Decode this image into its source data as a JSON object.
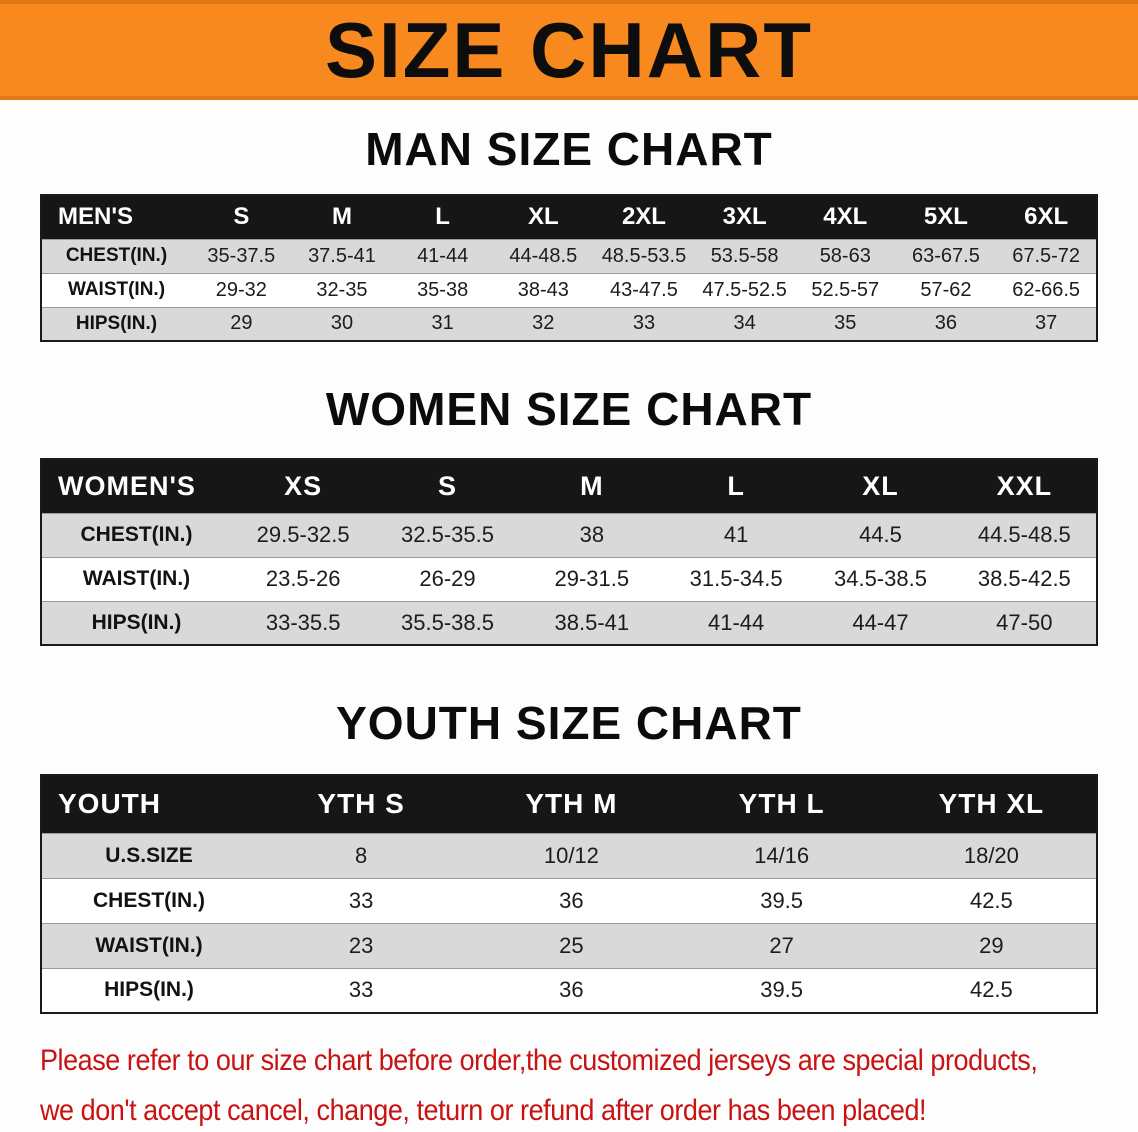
{
  "banner": {
    "title": "SIZE CHART"
  },
  "chart_data": [
    {
      "type": "table",
      "title": "MAN SIZE CHART",
      "columns": [
        "MEN'S",
        "S",
        "M",
        "L",
        "XL",
        "2XL",
        "3XL",
        "4XL",
        "5XL",
        "6XL"
      ],
      "rows": [
        [
          "CHEST(IN.)",
          "35-37.5",
          "37.5-41",
          "41-44",
          "44-48.5",
          "48.5-53.5",
          "53.5-58",
          "58-63",
          "63-67.5",
          "67.5-72"
        ],
        [
          "WAIST(IN.)",
          "29-32",
          "32-35",
          "35-38",
          "38-43",
          "43-47.5",
          "47.5-52.5",
          "52.5-57",
          "57-62",
          "62-66.5"
        ],
        [
          "HIPS(IN.)",
          "29",
          "30",
          "31",
          "32",
          "33",
          "34",
          "35",
          "36",
          "37"
        ]
      ]
    },
    {
      "type": "table",
      "title": "WOMEN SIZE CHART",
      "columns": [
        "WOMEN'S",
        "XS",
        "S",
        "M",
        "L",
        "XL",
        "XXL"
      ],
      "rows": [
        [
          "CHEST(IN.)",
          "29.5-32.5",
          "32.5-35.5",
          "38",
          "41",
          "44.5",
          "44.5-48.5"
        ],
        [
          "WAIST(IN.)",
          "23.5-26",
          "26-29",
          "29-31.5",
          "31.5-34.5",
          "34.5-38.5",
          "38.5-42.5"
        ],
        [
          "HIPS(IN.)",
          "33-35.5",
          "35.5-38.5",
          "38.5-41",
          "41-44",
          "44-47",
          "47-50"
        ]
      ]
    },
    {
      "type": "table",
      "title": "YOUTH SIZE CHART",
      "columns": [
        "YOUTH",
        "YTH S",
        "YTH M",
        "YTH L",
        "YTH XL"
      ],
      "rows": [
        [
          "U.S.SIZE",
          "8",
          "10/12",
          "14/16",
          "18/20"
        ],
        [
          "CHEST(IN.)",
          "33",
          "36",
          "39.5",
          "42.5"
        ],
        [
          "WAIST(IN.)",
          "23",
          "25",
          "27",
          "29"
        ],
        [
          "HIPS(IN.)",
          "33",
          "36",
          "39.5",
          "42.5"
        ]
      ]
    }
  ],
  "footer": {
    "line1": "Please refer to our size chart before order,the customized jerseys are special products,",
    "line2": "we don't accept cancel, change, teturn or refund after order has been placed!"
  },
  "colors": {
    "banner_bg": "#F7891E",
    "header_bg": "#161616",
    "row_alt_bg": "#D9D9D9",
    "footer_text": "#C91212"
  }
}
